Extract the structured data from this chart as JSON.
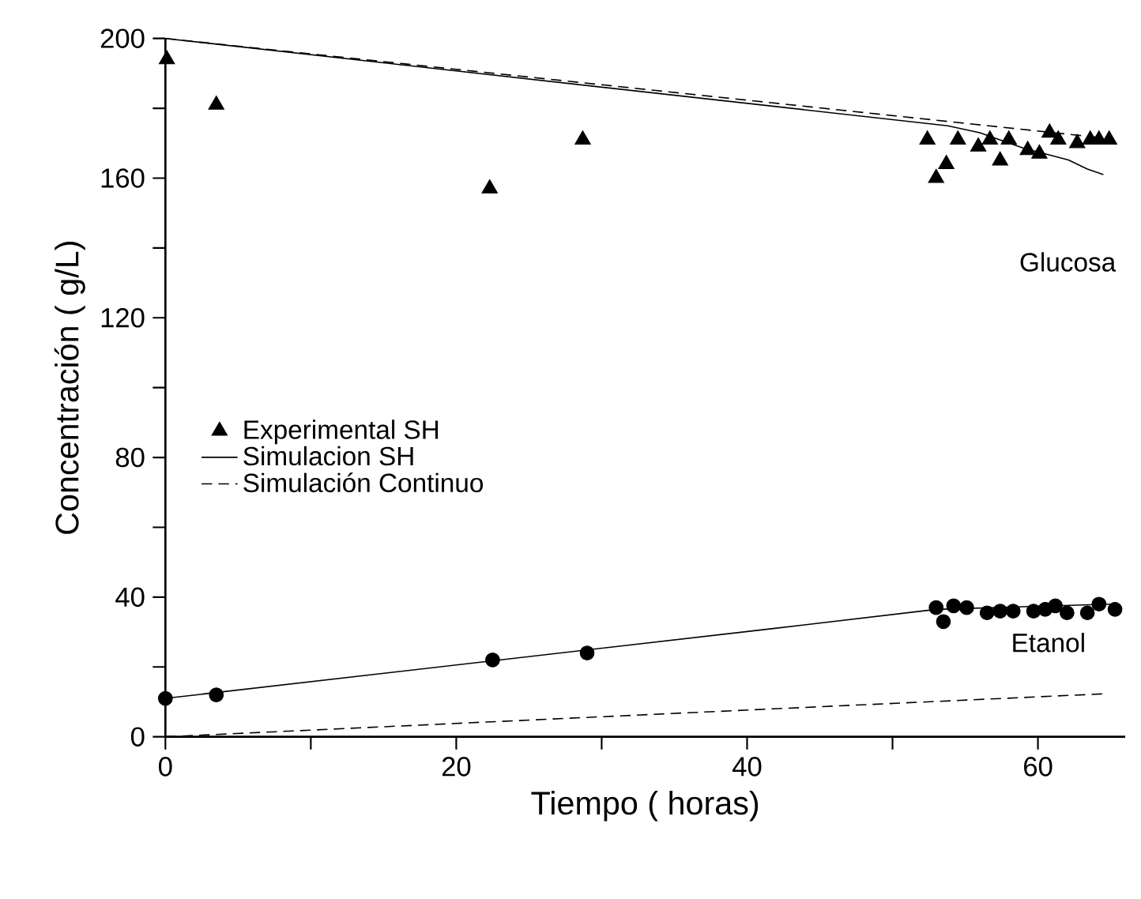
{
  "chart_data": {
    "type": "line",
    "xlabel": "Tiempo ( horas)",
    "ylabel": "Concentración ( g/L)",
    "xlim": [
      0,
      66
    ],
    "ylim": [
      0,
      200
    ],
    "xticks": [
      0,
      {
        "value": 10,
        "label": null
      },
      20,
      {
        "value": 30,
        "label": null
      },
      40,
      {
        "value": 50,
        "label": null
      },
      60
    ],
    "yticks": [
      0,
      {
        "value": 20,
        "label": null
      },
      40,
      {
        "value": 60,
        "label": null
      },
      80,
      {
        "value": 100,
        "label": null
      },
      120,
      {
        "value": 140,
        "label": null
      },
      160,
      {
        "value": 180,
        "label": null
      },
      200
    ],
    "legend": "center left",
    "annotations": [
      "Glucosa",
      "Etanol"
    ],
    "series": [
      {
        "name": "Experimental SH",
        "type": "scatter",
        "marker": "triangle",
        "color": "#000000",
        "x": [
          0.1,
          3.5,
          22.3,
          28.7,
          52.4,
          53,
          53.7,
          54.5,
          55.9,
          56.7,
          57.4,
          58,
          59.3,
          60.1,
          60.8,
          61.4,
          62.7,
          63.6,
          64.2,
          64.9
        ],
        "values": [
          194,
          181,
          157,
          171,
          171,
          160,
          164,
          171,
          169,
          171,
          165,
          171,
          168,
          167,
          173,
          171,
          170,
          171,
          171,
          171
        ]
      },
      {
        "name": "Simulacion SH",
        "line_style": "solid",
        "color": "#000000",
        "x": [
          0,
          53.8,
          56,
          59,
          62.1,
          63.4,
          64.5
        ],
        "values": [
          200,
          175,
          173,
          168.6,
          165.2,
          162.6,
          161
        ]
      },
      {
        "name": "Simulación Continuo",
        "line_style": "dashed",
        "color": "#000000",
        "x": [
          0,
          64.5
        ],
        "values": [
          200,
          171.5
        ]
      },
      {
        "type": "scatter",
        "marker": "circle",
        "color": "#000000",
        "x": [
          0,
          3.5,
          22.5,
          29,
          53,
          53.5,
          54.2,
          55.1,
          56.5,
          57.4,
          58.3,
          59.7,
          60.5,
          61.2,
          62,
          63.4,
          64.2,
          65.3
        ],
        "values": [
          11,
          12,
          22,
          24,
          37,
          33,
          37.5,
          37,
          35.5,
          36,
          36,
          36,
          36.5,
          37.5,
          35.5,
          35.5,
          38,
          36.5
        ]
      },
      {
        "line_style": "solid",
        "color": "#000000",
        "x": [
          0,
          41.8,
          53,
          65
        ],
        "values": [
          11,
          31,
          36.5,
          38
        ]
      },
      {
        "line_style": "dashed",
        "color": "#000000",
        "x": [
          0,
          41.8,
          64.5
        ],
        "values": [
          0,
          8,
          12.3
        ]
      }
    ]
  }
}
